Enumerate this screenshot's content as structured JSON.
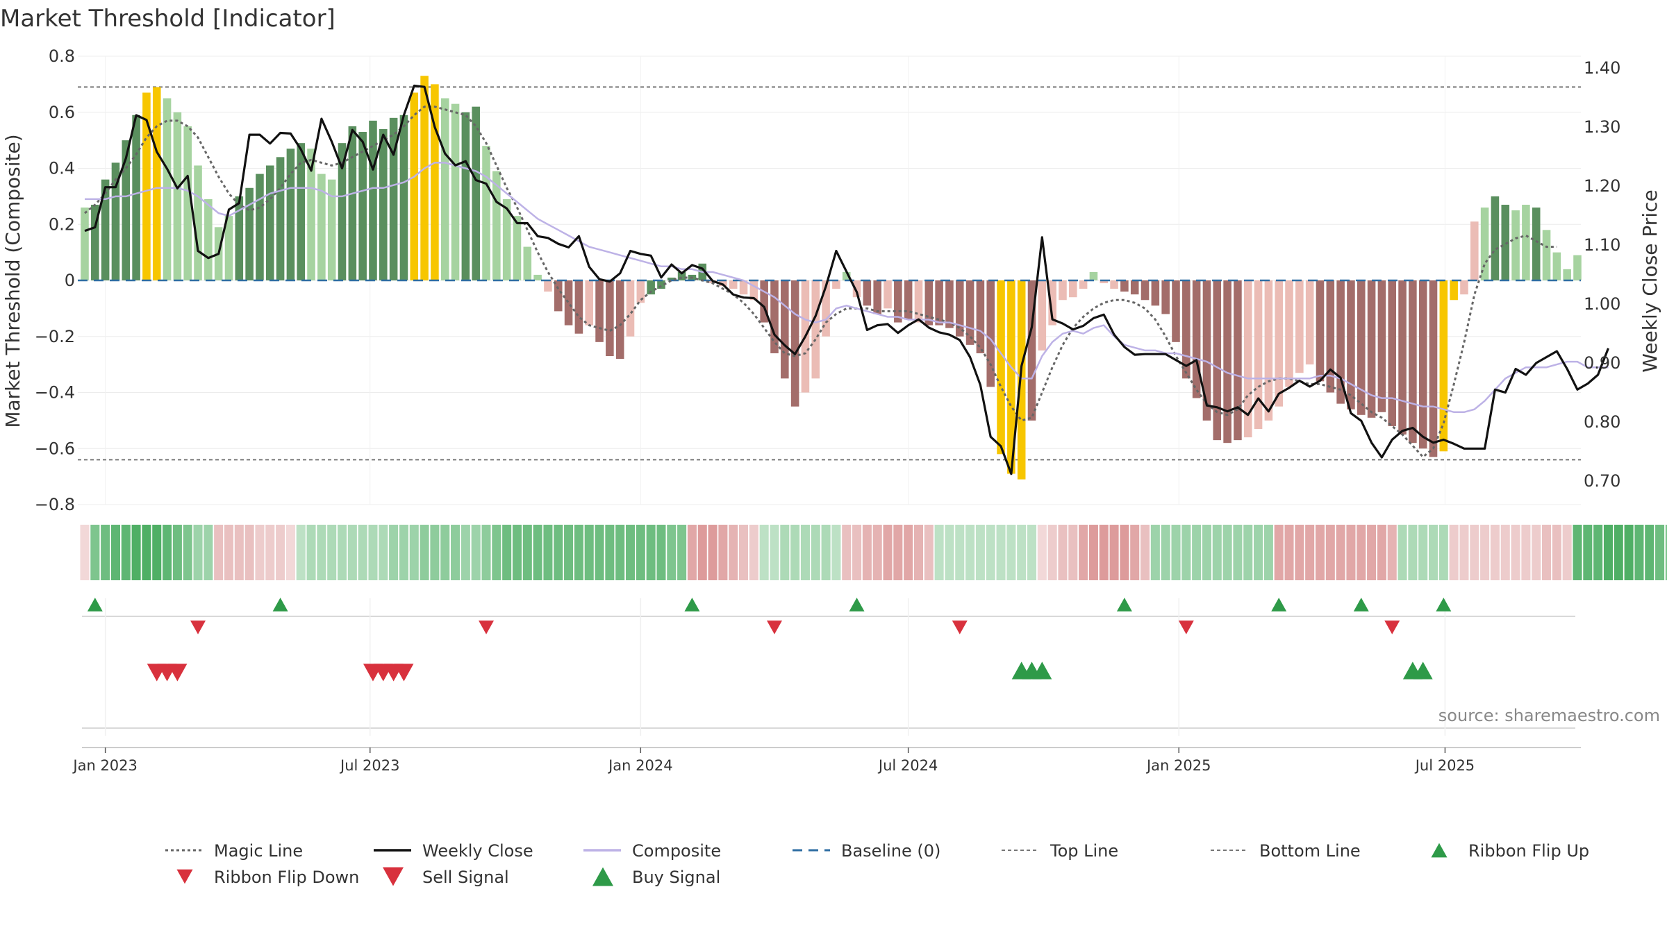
{
  "colors": {
    "strong_up": "#5a8f5e",
    "weak_up": "#a6d3a0",
    "strong_down": "#a36d6a",
    "weak_down": "#ebbcb5",
    "extreme": "#f7c600",
    "weekly_close": "#111111",
    "composite": "#bdb2e6",
    "magic": "#666666",
    "baseline": "#2f6ea3",
    "threshold_line": "#777777",
    "buy": "#2e9a48",
    "sell": "#d8313d",
    "flip_up": "#2e9a48",
    "flip_down": "#d8313d",
    "ribbon_green": "#3fa857",
    "ribbon_red": "#cc6a6a"
  },
  "chart_data": {
    "type": "bar",
    "title": "Market Threshold [Indicator]",
    "ylabel": "Market Threshold (Composite)",
    "y2label": "Weekly Close Price",
    "ylim": [
      -0.8,
      0.8
    ],
    "y2lim": [
      0.66,
      1.42
    ],
    "yticks": [
      "0.8",
      "0.6",
      "0.4",
      "0.2",
      "0",
      "−0.2",
      "−0.4",
      "−0.6",
      "−0.8"
    ],
    "yticks_values": [
      0.8,
      0.6,
      0.4,
      0.2,
      0,
      -0.2,
      -0.4,
      -0.6,
      -0.8
    ],
    "y2ticks": [
      "1.40",
      "1.30",
      "1.20",
      "1.10",
      "1.00",
      "0.90",
      "0.80",
      "0.70"
    ],
    "y2ticks_values": [
      1.4,
      1.3,
      1.2,
      1.1,
      1.0,
      0.9,
      0.8,
      0.7
    ],
    "x_start": "2022-12-19",
    "x_end": "2025-09-29",
    "x_step_days": 7,
    "xticks": [
      {
        "label": "Jan 2023",
        "date": "2023-01-02"
      },
      {
        "label": "Jul 2023",
        "date": "2023-07-01"
      },
      {
        "label": "Jan 2024",
        "date": "2024-01-01"
      },
      {
        "label": "Jul 2024",
        "date": "2024-07-01"
      },
      {
        "label": "Jan 2025",
        "date": "2025-01-01"
      },
      {
        "label": "Jul 2025",
        "date": "2025-07-01"
      }
    ],
    "top_line": 0.69,
    "bottom_line": -0.64,
    "baseline": 0,
    "bars": [
      0.26,
      0.27,
      0.36,
      0.42,
      0.5,
      0.59,
      0.67,
      0.69,
      0.65,
      0.6,
      0.55,
      0.41,
      0.29,
      0.19,
      0.23,
      0.3,
      0.33,
      0.38,
      0.41,
      0.44,
      0.47,
      0.49,
      0.47,
      0.38,
      0.36,
      0.49,
      0.55,
      0.53,
      0.57,
      0.54,
      0.58,
      0.59,
      0.67,
      0.73,
      0.7,
      0.65,
      0.63,
      0.6,
      0.62,
      0.48,
      0.39,
      0.29,
      0.23,
      0.12,
      0.02,
      -0.04,
      -0.11,
      -0.16,
      -0.19,
      -0.16,
      -0.22,
      -0.27,
      -0.28,
      -0.2,
      -0.08,
      -0.05,
      -0.03,
      0.01,
      0.03,
      0.02,
      0.06,
      -0.01,
      -0.02,
      -0.03,
      -0.05,
      -0.07,
      -0.15,
      -0.26,
      -0.35,
      -0.45,
      -0.4,
      -0.35,
      -0.2,
      -0.03,
      0.03,
      -0.06,
      -0.09,
      -0.12,
      -0.1,
      -0.15,
      -0.14,
      -0.15,
      -0.16,
      -0.16,
      -0.17,
      -0.2,
      -0.23,
      -0.26,
      -0.38,
      -0.62,
      -0.69,
      -0.71,
      -0.5,
      -0.25,
      -0.16,
      -0.07,
      -0.06,
      -0.03,
      0.03,
      -0.01,
      -0.03,
      -0.04,
      -0.05,
      -0.07,
      -0.09,
      -0.12,
      -0.22,
      -0.35,
      -0.42,
      -0.5,
      -0.57,
      -0.58,
      -0.57,
      -0.56,
      -0.53,
      -0.5,
      -0.45,
      -0.38,
      -0.33,
      -0.3,
      -0.36,
      -0.4,
      -0.44,
      -0.46,
      -0.48,
      -0.49,
      -0.47,
      -0.52,
      -0.55,
      -0.58,
      -0.6,
      -0.63,
      -0.61,
      -0.07,
      -0.05,
      0.21,
      0.26,
      0.3,
      0.27,
      0.25,
      0.27,
      0.26,
      0.18,
      0.1,
      0.04,
      0.09
    ],
    "bar_class": [
      "wu",
      "su",
      "su",
      "su",
      "su",
      "su",
      "x",
      "x",
      "wu",
      "wu",
      "wu",
      "wu",
      "wu",
      "wu",
      "wu",
      "su",
      "su",
      "su",
      "su",
      "su",
      "su",
      "su",
      "wu",
      "wu",
      "wu",
      "su",
      "su",
      "su",
      "su",
      "su",
      "su",
      "su",
      "x",
      "x",
      "x",
      "wu",
      "wu",
      "su",
      "su",
      "wu",
      "wu",
      "wu",
      "wu",
      "wu",
      "wu",
      "wd",
      "sd",
      "sd",
      "sd",
      "wd",
      "sd",
      "sd",
      "sd",
      "wd",
      "wd",
      "su",
      "su",
      "su",
      "su",
      "su",
      "su",
      "wd",
      "wd",
      "wd",
      "wd",
      "wd",
      "sd",
      "sd",
      "sd",
      "sd",
      "wd",
      "wd",
      "wd",
      "wd",
      "wu",
      "wd",
      "sd",
      "sd",
      "wd",
      "sd",
      "sd",
      "wd",
      "sd",
      "sd",
      "sd",
      "sd",
      "sd",
      "sd",
      "sd",
      "x",
      "x",
      "x",
      "sd",
      "wd",
      "wd",
      "wd",
      "wd",
      "wd",
      "wu",
      "wd",
      "wd",
      "sd",
      "sd",
      "sd",
      "sd",
      "sd",
      "sd",
      "sd",
      "sd",
      "sd",
      "sd",
      "sd",
      "sd",
      "wd",
      "wd",
      "wd",
      "wd",
      "wd",
      "wd",
      "wd",
      "sd",
      "sd",
      "sd",
      "sd",
      "sd",
      "sd",
      "sd",
      "sd",
      "sd",
      "sd",
      "sd",
      "sd",
      "x",
      "x",
      "wd",
      "wd",
      "wu",
      "su",
      "su",
      "wu",
      "wu",
      "su",
      "wu",
      "wu",
      "wu",
      "wu",
      "su"
    ],
    "weekly_close": [
      1.124,
      1.13,
      1.198,
      1.198,
      1.247,
      1.32,
      1.312,
      1.258,
      1.229,
      1.196,
      1.217,
      1.09,
      1.078,
      1.085,
      1.16,
      1.171,
      1.287,
      1.287,
      1.272,
      1.29,
      1.289,
      1.262,
      1.226,
      1.314,
      1.275,
      1.23,
      1.295,
      1.275,
      1.228,
      1.287,
      1.253,
      1.32,
      1.37,
      1.368,
      1.3,
      1.255,
      1.235,
      1.242,
      1.21,
      1.204,
      1.173,
      1.162,
      1.137,
      1.137,
      1.115,
      1.112,
      1.102,
      1.096,
      1.115,
      1.063,
      1.042,
      1.038,
      1.052,
      1.09,
      1.085,
      1.082,
      1.045,
      1.067,
      1.052,
      1.066,
      1.06,
      1.039,
      1.033,
      1.016,
      1.011,
      1.01,
      0.995,
      0.948,
      0.93,
      0.915,
      0.945,
      0.98,
      1.03,
      1.09,
      1.055,
      1.02,
      0.956,
      0.964,
      0.966,
      0.951,
      0.964,
      0.974,
      0.96,
      0.952,
      0.948,
      0.939,
      0.91,
      0.863,
      0.775,
      0.759,
      0.712,
      0.895,
      0.961,
      1.113,
      0.974,
      0.967,
      0.957,
      0.963,
      0.976,
      0.982,
      0.948,
      0.927,
      0.914,
      0.915,
      0.915,
      0.915,
      0.905,
      0.895,
      0.905,
      0.828,
      0.825,
      0.818,
      0.825,
      0.812,
      0.84,
      0.818,
      0.848,
      0.858,
      0.87,
      0.86,
      0.87,
      0.889,
      0.875,
      0.815,
      0.802,
      0.765,
      0.74,
      0.77,
      0.785,
      0.79,
      0.775,
      0.765,
      0.77,
      0.763,
      0.755,
      0.755,
      0.755,
      0.855,
      0.85,
      0.89,
      0.88,
      0.9,
      0.91,
      0.92,
      0.89,
      0.855,
      0.865,
      0.88,
      0.925
    ],
    "composite": [
      0.29,
      0.29,
      0.29,
      0.3,
      0.3,
      0.31,
      0.32,
      0.33,
      0.33,
      0.33,
      0.32,
      0.3,
      0.27,
      0.24,
      0.23,
      0.25,
      0.27,
      0.29,
      0.31,
      0.32,
      0.33,
      0.33,
      0.33,
      0.32,
      0.3,
      0.3,
      0.31,
      0.32,
      0.33,
      0.33,
      0.34,
      0.35,
      0.37,
      0.4,
      0.42,
      0.42,
      0.41,
      0.4,
      0.39,
      0.37,
      0.34,
      0.31,
      0.28,
      0.25,
      0.22,
      0.2,
      0.18,
      0.16,
      0.14,
      0.12,
      0.11,
      0.1,
      0.09,
      0.08,
      0.07,
      0.06,
      0.05,
      0.05,
      0.04,
      0.04,
      0.03,
      0.03,
      0.02,
      0.01,
      0.0,
      -0.02,
      -0.04,
      -0.06,
      -0.09,
      -0.12,
      -0.14,
      -0.15,
      -0.14,
      -0.1,
      -0.09,
      -0.1,
      -0.11,
      -0.12,
      -0.13,
      -0.13,
      -0.14,
      -0.14,
      -0.14,
      -0.15,
      -0.15,
      -0.16,
      -0.17,
      -0.18,
      -0.21,
      -0.26,
      -0.31,
      -0.35,
      -0.35,
      -0.27,
      -0.22,
      -0.19,
      -0.18,
      -0.19,
      -0.17,
      -0.16,
      -0.2,
      -0.23,
      -0.24,
      -0.25,
      -0.25,
      -0.26,
      -0.26,
      -0.27,
      -0.28,
      -0.29,
      -0.31,
      -0.33,
      -0.34,
      -0.35,
      -0.35,
      -0.35,
      -0.35,
      -0.35,
      -0.35,
      -0.35,
      -0.34,
      -0.34,
      -0.35,
      -0.37,
      -0.39,
      -0.41,
      -0.42,
      -0.42,
      -0.43,
      -0.44,
      -0.45,
      -0.45,
      -0.46,
      -0.47,
      -0.47,
      -0.46,
      -0.43,
      -0.39,
      -0.35,
      -0.33,
      -0.31,
      -0.31,
      -0.31,
      -0.3,
      -0.29,
      -0.29,
      -0.31,
      -0.31,
      -0.31
    ],
    "magic": [
      0.24,
      0.27,
      0.31,
      0.36,
      0.4,
      0.45,
      0.51,
      0.55,
      0.57,
      0.57,
      0.55,
      0.51,
      0.44,
      0.37,
      0.31,
      0.27,
      0.25,
      0.26,
      0.29,
      0.33,
      0.38,
      0.42,
      0.43,
      0.42,
      0.41,
      0.42,
      0.44,
      0.46,
      0.48,
      0.5,
      0.52,
      0.55,
      0.59,
      0.62,
      0.62,
      0.61,
      0.6,
      0.59,
      0.55,
      0.49,
      0.41,
      0.33,
      0.26,
      0.18,
      0.1,
      0.03,
      -0.03,
      -0.08,
      -0.13,
      -0.16,
      -0.17,
      -0.18,
      -0.16,
      -0.12,
      -0.07,
      -0.04,
      -0.02,
      0.0,
      0.01,
      0.01,
      0.0,
      -0.01,
      -0.03,
      -0.05,
      -0.08,
      -0.12,
      -0.17,
      -0.22,
      -0.26,
      -0.27,
      -0.26,
      -0.21,
      -0.15,
      -0.12,
      -0.1,
      -0.1,
      -0.1,
      -0.11,
      -0.11,
      -0.11,
      -0.11,
      -0.12,
      -0.13,
      -0.14,
      -0.15,
      -0.17,
      -0.2,
      -0.24,
      -0.3,
      -0.38,
      -0.45,
      -0.5,
      -0.49,
      -0.4,
      -0.31,
      -0.23,
      -0.17,
      -0.13,
      -0.1,
      -0.08,
      -0.07,
      -0.07,
      -0.08,
      -0.1,
      -0.14,
      -0.2,
      -0.27,
      -0.33,
      -0.39,
      -0.44,
      -0.47,
      -0.48,
      -0.46,
      -0.41,
      -0.38,
      -0.36,
      -0.35,
      -0.35,
      -0.36,
      -0.37,
      -0.37,
      -0.38,
      -0.39,
      -0.41,
      -0.44,
      -0.47,
      -0.49,
      -0.52,
      -0.55,
      -0.59,
      -0.63,
      -0.6,
      -0.51,
      -0.37,
      -0.22,
      -0.05,
      0.06,
      0.11,
      0.13,
      0.15,
      0.16,
      0.14,
      0.12,
      0.12
    ],
    "ribbon": [
      -0.1,
      0.6,
      0.7,
      0.8,
      0.8,
      0.9,
      0.9,
      0.9,
      0.8,
      0.7,
      0.6,
      0.4,
      0.4,
      -0.3,
      -0.3,
      -0.3,
      -0.3,
      -0.2,
      -0.2,
      -0.2,
      -0.1,
      0.2,
      0.3,
      0.3,
      0.3,
      0.3,
      0.3,
      0.3,
      0.3,
      0.3,
      0.4,
      0.4,
      0.4,
      0.5,
      0.5,
      0.5,
      0.5,
      0.4,
      0.4,
      0.5,
      0.6,
      0.7,
      0.7,
      0.7,
      0.7,
      0.7,
      0.7,
      0.7,
      0.7,
      0.7,
      0.7,
      0.7,
      0.7,
      0.7,
      0.7,
      0.7,
      0.7,
      0.6,
      0.6,
      -0.5,
      -0.6,
      -0.6,
      -0.5,
      -0.4,
      -0.3,
      -0.2,
      0.2,
      0.2,
      0.3,
      0.3,
      0.3,
      0.3,
      0.3,
      0.2,
      -0.3,
      -0.3,
      -0.4,
      -0.4,
      -0.5,
      -0.5,
      -0.5,
      -0.4,
      -0.3,
      0.2,
      0.2,
      0.2,
      0.2,
      0.2,
      0.2,
      0.2,
      0.2,
      0.2,
      0.2,
      -0.1,
      -0.2,
      -0.3,
      -0.3,
      -0.5,
      -0.6,
      -0.6,
      -0.6,
      -0.6,
      -0.5,
      -0.3,
      0.4,
      0.4,
      0.4,
      0.4,
      0.4,
      0.4,
      0.4,
      0.4,
      0.4,
      0.4,
      0.4,
      0.4,
      -0.5,
      -0.5,
      -0.5,
      -0.5,
      -0.5,
      -0.5,
      -0.5,
      -0.5,
      -0.5,
      -0.5,
      -0.5,
      -0.4,
      0.3,
      0.3,
      0.3,
      0.3,
      0.3,
      -0.2,
      -0.2,
      -0.2,
      -0.2,
      -0.2,
      -0.2,
      -0.2,
      -0.2,
      -0.2,
      -0.3,
      -0.3,
      -0.2,
      0.8,
      0.8,
      0.8,
      0.9,
      0.9,
      0.9,
      0.8,
      0.8,
      0.7,
      0.6,
      0.5
    ],
    "ribbon_flip_up": [
      "2022-12-26",
      "2023-05-01",
      "2024-02-05",
      "2024-05-27",
      "2025-03-10",
      "2025-06-30",
      "2025-05-05",
      "2024-11-25"
    ],
    "ribbon_flip_down": [
      "2023-03-06",
      "2023-09-18",
      "2024-04-01",
      "2024-08-05",
      "2025-01-06",
      "2025-05-26"
    ],
    "sell_signals": [
      "2023-02-06",
      "2023-02-13",
      "2023-02-20",
      "2023-07-03",
      "2023-07-10",
      "2023-07-17",
      "2023-07-24"
    ],
    "buy_signals": [
      "2024-09-16",
      "2024-09-23",
      "2024-09-30",
      "2025-06-09",
      "2025-06-16"
    ],
    "legend": [
      {
        "key": "magic",
        "label": "Magic Line",
        "style": "dotted"
      },
      {
        "key": "weekly_close",
        "label": "Weekly Close",
        "style": "solid"
      },
      {
        "key": "composite",
        "label": "Composite",
        "style": "solid"
      },
      {
        "key": "baseline",
        "label": "Baseline (0)",
        "style": "dashed"
      },
      {
        "key": "top",
        "label": "Top Line",
        "style": "dashed-thin"
      },
      {
        "key": "bottom",
        "label": "Bottom Line",
        "style": "dashed-thin"
      },
      {
        "key": "flip_up",
        "label": "Ribbon Flip Up",
        "style": "marker-up"
      },
      {
        "key": "flip_down",
        "label": "Ribbon Flip Down",
        "style": "marker-down"
      },
      {
        "key": "sell",
        "label": "Sell Signal",
        "style": "marker-down-big"
      },
      {
        "key": "buy",
        "label": "Buy Signal",
        "style": "marker-up-big"
      }
    ],
    "legend_placement": "bottom",
    "grid": true
  },
  "source": "source: sharemaestro.com"
}
